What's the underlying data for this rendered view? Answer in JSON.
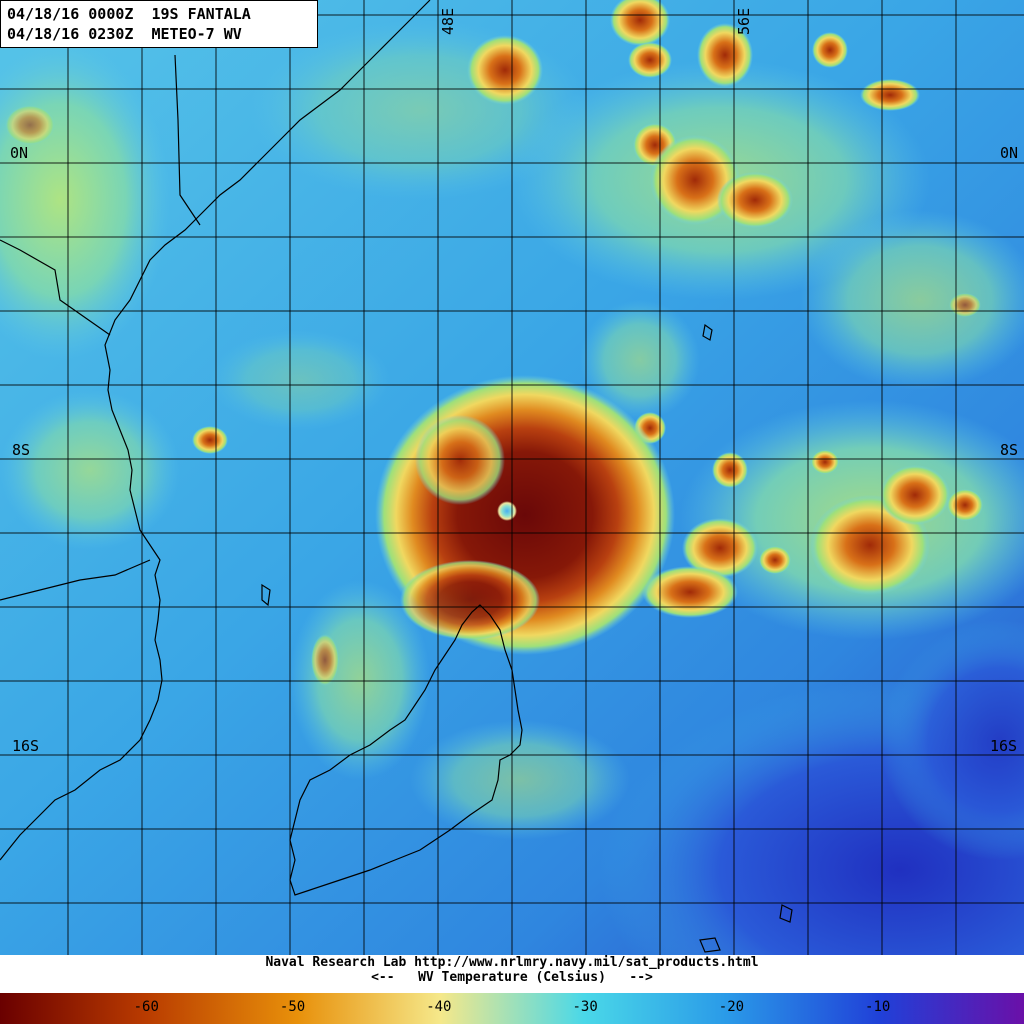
{
  "header": {
    "line1": "04/18/16 0000Z  19S FANTALA",
    "line2": "04/18/16 0230Z  METEO-7 WV"
  },
  "grid": {
    "latitude_labels": [
      "0N",
      "8S",
      "16S"
    ],
    "longitude_labels": [
      "48E",
      "56E"
    ]
  },
  "footer": {
    "credit": "Naval Research Lab http://www.nrlmry.navy.mil/sat_products.html",
    "scale_caption": "<--   WV Temperature (Celsius)   -->"
  },
  "colorbar": {
    "tick_labels": [
      "-60",
      "-50",
      "-40",
      "-30",
      "-20",
      "-10"
    ],
    "tick_values": [
      -60,
      -50,
      -40,
      -30,
      -20,
      -10
    ],
    "value_range": [
      -70,
      0
    ],
    "colors": [
      "#6a0000",
      "#b83a00",
      "#e8900a",
      "#f5e88a",
      "#4ad8e8",
      "#2a9ae8",
      "#2040d8",
      "#6a10a8"
    ]
  },
  "map_colors": {
    "clear_air": "#3aa6e6",
    "moist_low": "#6ed0e8",
    "moist_mid": "#9ee07a",
    "cloud_warm": "#f0d860",
    "cloud_cold": "#d87018",
    "cloud_coldest": "#6a0808",
    "dry_deep": "#2838c8"
  },
  "storm": {
    "name": "19S FANTALA",
    "satellite": "METEO-7 WV"
  }
}
